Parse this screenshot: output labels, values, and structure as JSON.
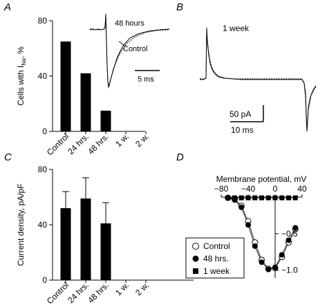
{
  "panels": {
    "a": "A",
    "b": "B",
    "c": "C",
    "d": "D"
  },
  "chart_data": [
    {
      "panel": "A",
      "type": "bar",
      "ylabel_main": "Cells with I",
      "ylabel_sub": "Na",
      "ylabel_tail": ", %",
      "ylim": [
        0,
        80
      ],
      "yticks": [
        0,
        40,
        80
      ],
      "categories": [
        "Control",
        "24 hrs.",
        "48 hrs.",
        "1 w.",
        "2 w."
      ],
      "values": [
        65,
        42,
        15,
        0,
        0
      ],
      "inset": {
        "type": "line",
        "labels": [
          "48 hours",
          "Control"
        ],
        "scalebar": "5 ms"
      }
    },
    {
      "panel": "B",
      "type": "line",
      "label": "1 week",
      "scalebar_y": "50 pA",
      "scalebar_x": "10 ms"
    },
    {
      "panel": "C",
      "type": "bar",
      "ylabel": "Current density, pA/pF",
      "ylim": [
        0,
        80
      ],
      "yticks": [
        0,
        40,
        80
      ],
      "categories": [
        "Control",
        "24 hrs.",
        "48 hrs.",
        "1 w.",
        "2 w."
      ],
      "values": [
        52,
        59,
        41,
        0,
        0
      ],
      "errors": [
        12,
        15,
        15,
        0,
        0
      ]
    },
    {
      "panel": "D",
      "type": "line",
      "xlabel": "Membrane potential, mV",
      "xlim": [
        -80,
        40
      ],
      "ylim": [
        -1.05,
        0
      ],
      "xticks": [
        -80,
        -40,
        0,
        40
      ],
      "yticks": [
        -1.0,
        -0.5
      ],
      "ytick_labels": [
        "−1.0",
        "−0.5"
      ],
      "xtick_labels": [
        "−80",
        "−40",
        "0",
        "40"
      ],
      "x": [
        -70,
        -60,
        -50,
        -40,
        -30,
        -20,
        -10,
        0,
        10,
        20,
        30
      ],
      "series": [
        {
          "name": "Control",
          "marker": "open-circle",
          "values": [
            -0.01,
            -0.03,
            -0.12,
            -0.33,
            -0.62,
            -0.86,
            -0.98,
            -0.97,
            -0.82,
            -0.62,
            -0.44
          ]
        },
        {
          "name": "48 hrs.",
          "marker": "filled-circle",
          "values": [
            -0.01,
            -0.04,
            -0.14,
            -0.38,
            -0.67,
            -0.89,
            -0.99,
            -0.96,
            -0.79,
            -0.59,
            -0.42
          ]
        },
        {
          "name": "1 week",
          "marker": "filled-square",
          "values": [
            -0.01,
            -0.01,
            -0.01,
            -0.01,
            -0.01,
            -0.01,
            -0.01,
            -0.01,
            -0.01,
            -0.01,
            -0.01
          ]
        }
      ]
    }
  ]
}
